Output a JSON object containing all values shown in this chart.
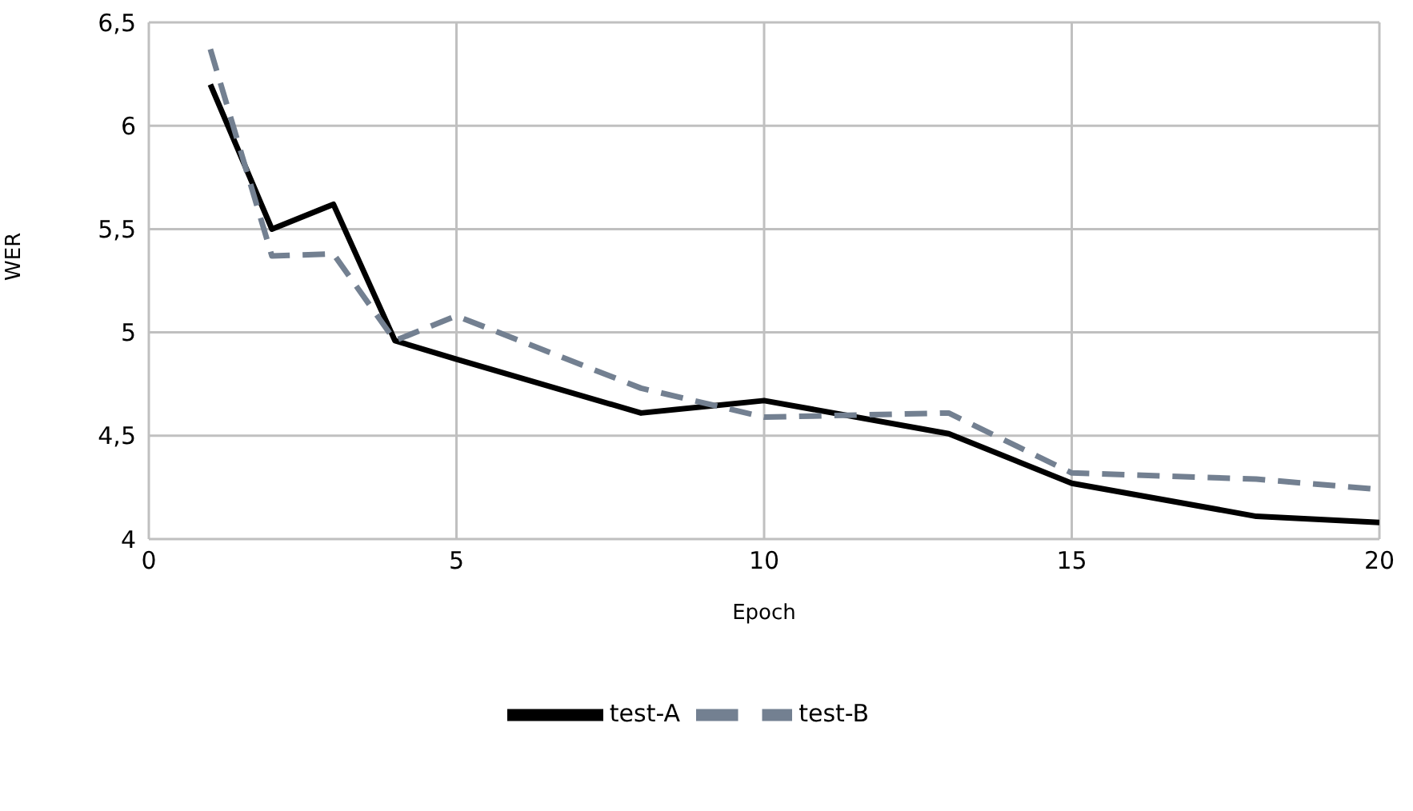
{
  "chart_data": {
    "type": "line",
    "xlabel": "Epoch",
    "ylabel": "WER",
    "x": [
      1,
      2,
      3,
      4,
      5,
      8,
      10,
      13,
      15,
      18,
      20
    ],
    "series": [
      {
        "name": "test-A",
        "color": "#000000",
        "line_style": "solid",
        "values": [
          6.2,
          5.5,
          5.62,
          4.96,
          4.87,
          4.61,
          4.67,
          4.51,
          4.27,
          4.11,
          4.08
        ]
      },
      {
        "name": "test-B",
        "color": "#738091",
        "line_style": "dashed",
        "values": [
          6.37,
          5.37,
          5.38,
          4.96,
          5.08,
          4.73,
          4.59,
          4.61,
          4.32,
          4.29,
          4.24
        ]
      }
    ],
    "xlim": [
      0,
      20
    ],
    "xticks": [
      0,
      5,
      10,
      15,
      20
    ],
    "ylim": [
      4,
      6.5
    ],
    "yticks": [
      {
        "value": 4,
        "label": "4"
      },
      {
        "value": 4.5,
        "label": "4,5"
      },
      {
        "value": 5,
        "label": "5"
      },
      {
        "value": 5.5,
        "label": "5,5"
      },
      {
        "value": 6,
        "label": "6"
      },
      {
        "value": 6.5,
        "label": "6,5"
      }
    ],
    "grid": true,
    "legend": "bottom",
    "marker": "none"
  }
}
